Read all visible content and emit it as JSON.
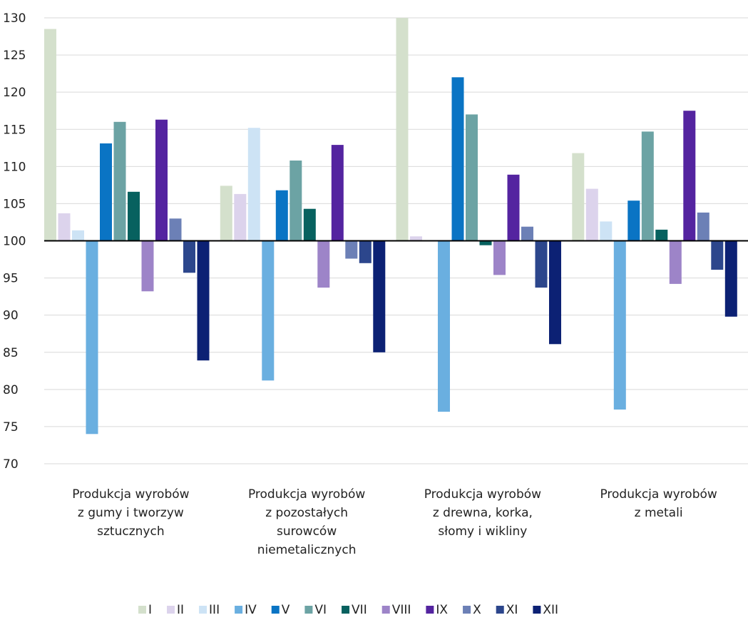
{
  "chart_data": {
    "type": "bar",
    "title": "",
    "xlabel": "",
    "ylabel": "",
    "ylim": [
      70,
      130
    ],
    "y_ticks": [
      70,
      75,
      80,
      85,
      90,
      95,
      100,
      105,
      110,
      115,
      120,
      125,
      130
    ],
    "baseline": 100,
    "grid": true,
    "legend_position": "bottom",
    "categories": [
      [
        "Produkcja wyrobów",
        "z gumy i tworzyw",
        "sztucznych"
      ],
      [
        "Produkcja wyrobów",
        "z pozostałych",
        "surowców",
        "niemetalicznych"
      ],
      [
        "Produkcja wyrobów",
        "z drewna, korka,",
        "słomy i wikliny"
      ],
      [
        "Produkcja wyrobów",
        "z metali"
      ]
    ],
    "series": [
      {
        "name": "I",
        "color": "#d4e0cc",
        "values": [
          128.5,
          107.4,
          130.0,
          111.8
        ]
      },
      {
        "name": "II",
        "color": "#dcd3ec",
        "values": [
          103.7,
          106.3,
          100.6,
          107.0
        ]
      },
      {
        "name": "III",
        "color": "#cde3f5",
        "values": [
          101.4,
          115.2,
          100.1,
          102.6
        ]
      },
      {
        "name": "IV",
        "color": "#6aafe0",
        "values": [
          74.0,
          81.2,
          77.0,
          77.3
        ]
      },
      {
        "name": "V",
        "color": "#0a74c4",
        "values": [
          113.1,
          106.8,
          122.0,
          105.4
        ]
      },
      {
        "name": "VI",
        "color": "#6ca3a4",
        "values": [
          116.0,
          110.8,
          117.0,
          114.7
        ]
      },
      {
        "name": "VII",
        "color": "#07615f",
        "values": [
          106.6,
          104.3,
          99.4,
          101.5
        ]
      },
      {
        "name": "VIII",
        "color": "#9d84c8",
        "values": [
          93.2,
          93.7,
          95.4,
          94.2
        ]
      },
      {
        "name": "IX",
        "color": "#5424a0",
        "values": [
          116.3,
          112.9,
          108.9,
          117.5
        ]
      },
      {
        "name": "X",
        "color": "#6c80b6",
        "values": [
          103.0,
          97.6,
          101.9,
          103.8
        ]
      },
      {
        "name": "XI",
        "color": "#2c468c",
        "values": [
          95.7,
          97.0,
          93.7,
          96.1
        ]
      },
      {
        "name": "XII",
        "color": "#0c2174",
        "values": [
          83.9,
          85.0,
          86.1,
          89.8
        ]
      }
    ]
  }
}
